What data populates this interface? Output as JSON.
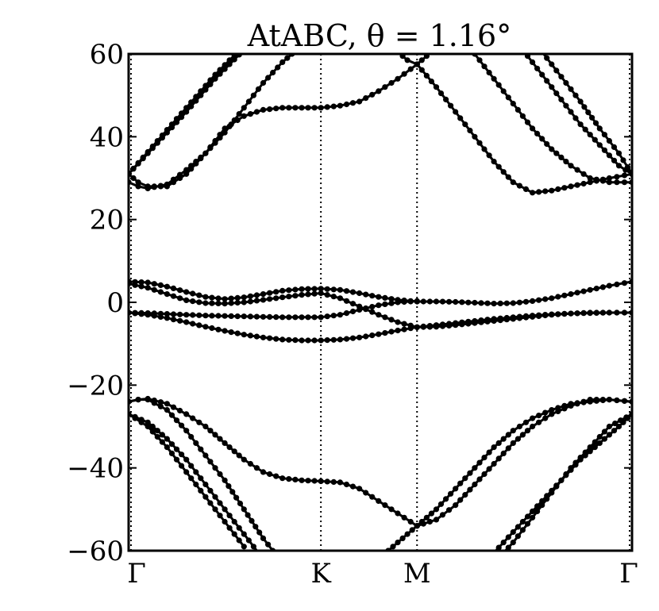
{
  "chart_data": {
    "type": "scatter",
    "title": "AtABC, θ = 1.16°",
    "xlabel": "",
    "ylabel": "",
    "ylim": [
      -60,
      60
    ],
    "xlim": [
      0,
      2.618
    ],
    "y_ticks": [
      -60,
      -40,
      -20,
      0,
      20,
      40,
      60
    ],
    "y_tick_labels": [
      "−60",
      "−40",
      "−20",
      "0",
      "20",
      "40",
      "60"
    ],
    "x_ticks": [
      0,
      1.0,
      1.5,
      2.618
    ],
    "x_tick_labels": [
      "Γ",
      "K",
      "M",
      "Γ"
    ],
    "grid": false,
    "vertical_lines_at": [
      1.0,
      1.5
    ],
    "series": [
      {
        "x": [
          0,
          0.15,
          0.3,
          0.45,
          0.6,
          0.7
        ],
        "values": [
          31,
          39,
          47,
          55,
          62,
          66
        ]
      },
      {
        "x": [
          0,
          0.15,
          0.3,
          0.45,
          0.6,
          0.7
        ],
        "values": [
          31,
          38.5,
          46,
          54,
          61,
          65
        ]
      },
      {
        "x": [
          0,
          0.05,
          0.1,
          0.2,
          0.3,
          0.4,
          0.5,
          0.6,
          0.7,
          0.8,
          0.9,
          1.0
        ],
        "values": [
          29,
          28,
          27.5,
          28.5,
          32,
          36,
          41,
          47,
          53,
          58,
          62,
          65
        ]
      },
      {
        "x": [
          0,
          0.05,
          0.1,
          0.2,
          0.3,
          0.4,
          0.5,
          0.6,
          0.7,
          0.8,
          0.9,
          1.0,
          1.1,
          1.2,
          1.3,
          1.4,
          1.5
        ],
        "values": [
          31,
          29,
          28,
          28,
          31,
          36,
          42,
          45,
          46.5,
          47,
          47,
          47,
          47.5,
          48.5,
          51,
          54,
          57.5
        ]
      },
      {
        "x": [
          1.5,
          1.6,
          1.7,
          1.8,
          1.9,
          2.0,
          2.1,
          2.2,
          2.3,
          2.4,
          2.5,
          2.618
        ],
        "values": [
          57.5,
          52,
          46,
          40,
          34,
          29,
          26.5,
          27,
          28,
          29,
          30,
          31
        ]
      },
      {
        "x": [
          1.3,
          1.35,
          1.4,
          1.45,
          1.5,
          1.55,
          1.6
        ],
        "values": [
          66,
          63,
          60.5,
          58.5,
          57.5,
          59.5,
          62
        ]
      },
      {
        "x": [
          1.7,
          1.8,
          1.9,
          2.0,
          2.1,
          2.2,
          2.3,
          2.4,
          2.5,
          2.618
        ],
        "values": [
          66,
          60,
          54,
          48,
          42,
          37,
          33,
          30,
          29,
          29
        ]
      },
      {
        "x": [
          1.95,
          2.05,
          2.15,
          2.25,
          2.35,
          2.45,
          2.55,
          2.618
        ],
        "values": [
          66,
          61,
          55,
          49,
          43,
          38,
          33,
          31
        ]
      },
      {
        "x": [
          2.05,
          2.15,
          2.25,
          2.35,
          2.45,
          2.55,
          2.618
        ],
        "values": [
          66,
          60.5,
          54.5,
          48.5,
          42,
          36,
          31
        ]
      },
      {
        "x": [
          0,
          0.1,
          0.2,
          0.3,
          0.4,
          0.5,
          0.6,
          0.7,
          0.8,
          0.9,
          1.0,
          1.1,
          1.2,
          1.3,
          1.4,
          1.5
        ],
        "values": [
          5,
          4.8,
          3.8,
          2.5,
          1.3,
          0.8,
          1.2,
          2.0,
          2.8,
          3.2,
          3.3,
          3.0,
          2.2,
          1.3,
          0.6,
          0.2
        ]
      },
      {
        "x": [
          0,
          0.1,
          0.2,
          0.3,
          0.4,
          0.5,
          0.6,
          0.7,
          0.8,
          0.9,
          1.0,
          1.1,
          1.2,
          1.3,
          1.4,
          1.5
        ],
        "values": [
          4.5,
          3.5,
          2.0,
          0.5,
          -0.2,
          -0.3,
          0.0,
          0.6,
          1.2,
          1.8,
          2.2,
          1.0,
          -1.0,
          -3.0,
          -4.8,
          -6.0
        ]
      },
      {
        "x": [
          1.5,
          1.6,
          1.7,
          1.8,
          1.9,
          2.0,
          2.1,
          2.2,
          2.3,
          2.4,
          2.5,
          2.618
        ],
        "values": [
          0.2,
          0.2,
          0.1,
          -0.1,
          -0.3,
          -0.2,
          0.3,
          1.0,
          2.0,
          3.0,
          4.0,
          5.0
        ]
      },
      {
        "x": [
          1.5,
          1.6,
          1.7,
          1.8,
          1.9,
          2.0,
          2.1,
          2.2,
          2.3,
          2.4,
          2.5,
          2.618
        ],
        "values": [
          -6.0,
          -5.9,
          -5.5,
          -5.0,
          -4.5,
          -4.0,
          -3.5,
          -3.0,
          -2.7,
          -2.5,
          -2.5,
          -2.5
        ]
      },
      {
        "x": [
          0,
          0.1,
          0.2,
          0.3,
          0.4,
          0.5,
          0.6,
          0.7,
          0.8,
          0.9,
          1.0,
          1.1,
          1.2,
          1.3,
          1.4,
          1.5
        ],
        "values": [
          -2.5,
          -2.6,
          -2.8,
          -3.0,
          -3.2,
          -3.3,
          -3.4,
          -3.5,
          -3.6,
          -3.6,
          -3.6,
          -3.0,
          -1.8,
          -0.7,
          0.0,
          0.3
        ]
      },
      {
        "x": [
          0,
          0.1,
          0.2,
          0.3,
          0.4,
          0.5,
          0.6,
          0.7,
          0.8,
          0.9,
          1.0,
          1.1,
          1.2,
          1.3,
          1.4,
          1.5
        ],
        "values": [
          -2.5,
          -3.0,
          -3.8,
          -4.8,
          -5.9,
          -6.9,
          -7.8,
          -8.5,
          -9.0,
          -9.2,
          -9.2,
          -9.0,
          -8.5,
          -7.7,
          -6.8,
          -6.0
        ]
      },
      {
        "x": [
          1.5,
          1.6,
          1.7,
          1.8,
          1.9,
          2.0,
          2.1,
          2.2,
          2.3,
          2.4,
          2.5,
          2.618
        ],
        "values": [
          -6.0,
          -5.5,
          -5.0,
          -4.5,
          -4.0,
          -3.6,
          -3.2,
          -2.9,
          -2.7,
          -2.6,
          -2.5,
          -2.5
        ]
      },
      {
        "x": [
          0,
          0.05,
          0.1,
          0.2,
          0.3,
          0.4,
          0.5,
          0.6,
          0.7,
          0.8,
          0.9,
          1.0,
          1.1,
          1.2,
          1.3,
          1.4,
          1.5
        ],
        "values": [
          -24,
          -23.5,
          -23.3,
          -24.5,
          -27,
          -30,
          -34,
          -38,
          -41,
          -42.5,
          -43,
          -43.2,
          -43.5,
          -45,
          -48,
          -51,
          -54
        ]
      },
      {
        "x": [
          0,
          0.05,
          0.1,
          0.2,
          0.3,
          0.4,
          0.5,
          0.6,
          0.7,
          0.8
        ],
        "values": [
          -24,
          -23.5,
          -23.5,
          -26,
          -31,
          -37,
          -43,
          -50,
          -57,
          -63
        ]
      },
      {
        "x": [
          0,
          0.1,
          0.2,
          0.3,
          0.4,
          0.5,
          0.6,
          0.7
        ],
        "values": [
          -27,
          -29,
          -33,
          -38,
          -44,
          -50,
          -56,
          -62
        ]
      },
      {
        "x": [
          0,
          0.1,
          0.2,
          0.3,
          0.4,
          0.5,
          0.6
        ],
        "values": [
          -27,
          -30,
          -35,
          -41,
          -47,
          -53,
          -59
        ]
      },
      {
        "x": [
          1.5,
          1.6,
          1.7,
          1.8,
          1.9,
          2.0,
          2.1,
          2.2,
          2.3,
          2.4,
          2.5,
          2.618
        ],
        "values": [
          -54,
          -52.5,
          -49,
          -44,
          -39,
          -34,
          -30,
          -27,
          -25,
          -23.5,
          -23.5,
          -24
        ]
      },
      {
        "x": [
          1.3,
          1.35,
          1.4,
          1.45,
          1.5,
          1.6,
          1.7,
          1.8,
          1.9,
          2.0,
          2.1,
          2.2,
          2.3,
          2.4,
          2.5,
          2.618
        ],
        "values": [
          -63,
          -60,
          -58,
          -56,
          -54,
          -50,
          -45,
          -40,
          -35,
          -31,
          -28,
          -26,
          -24.5,
          -24,
          -23.5,
          -24
        ]
      },
      {
        "x": [
          1.85,
          1.95,
          2.05,
          2.15,
          2.25,
          2.35,
          2.45,
          2.55,
          2.618
        ],
        "values": [
          -63,
          -58,
          -53,
          -48,
          -43,
          -38,
          -34,
          -30,
          -27
        ]
      },
      {
        "x": [
          1.9,
          2.0,
          2.1,
          2.2,
          2.3,
          2.4,
          2.5,
          2.618
        ],
        "values": [
          -63,
          -58,
          -52,
          -46,
          -40,
          -35,
          -30,
          -27
        ]
      }
    ]
  }
}
